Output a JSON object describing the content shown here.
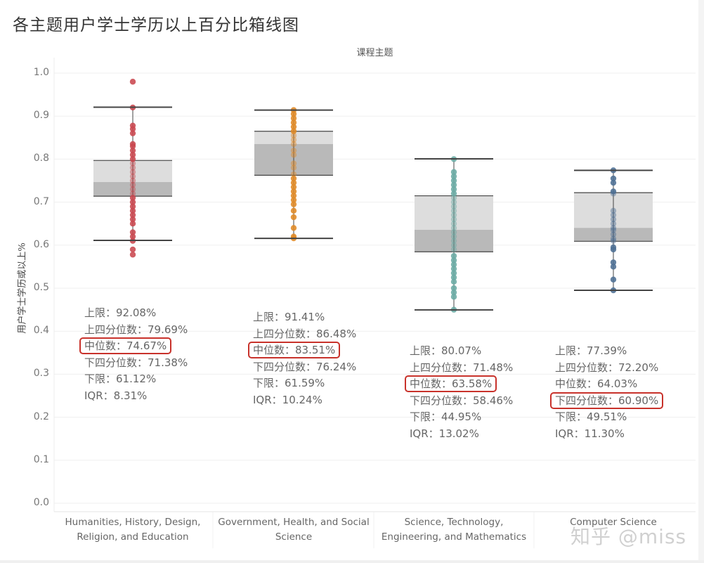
{
  "title": "各主题用户学士学历以上百分比箱线图",
  "column_header": "课程主题",
  "y_axis_title": "用户学士学历或以上%",
  "watermark": "知乎 @miss",
  "colors": {
    "humanities": "#c9474e",
    "government": "#e08a26",
    "stem": "#6aaba4",
    "cs": "#4d6f94",
    "box_upper": "#dddddd",
    "box_lower": "#b9b9b9",
    "whisker": "#444444",
    "highlight": "#c8322b"
  },
  "chart_data": {
    "type": "box",
    "title": "各主题用户学士学历以上百分比箱线图",
    "xlabel": "课程主题",
    "ylabel": "用户学士学历或以上%",
    "ylim": [
      0.0,
      1.0
    ],
    "yticks": [
      "0.0",
      "0.1",
      "0.2",
      "0.3",
      "0.4",
      "0.5",
      "0.6",
      "0.7",
      "0.8",
      "0.9",
      "1.0"
    ],
    "grid": true,
    "categories": [
      "Humanities, History, Design, Religion, and Education",
      "Government, Health, and Social Science",
      "Science, Technology, Engineering, and Mathematics",
      "Computer Science"
    ],
    "series": [
      {
        "name": "Humanities, History, Design, Religion, and Education",
        "label_lines": [
          "Humanities, History, Design,",
          "Religion, and Education"
        ],
        "upper_whisker": 0.9208,
        "q3": 0.7969,
        "median": 0.7467,
        "q1": 0.7138,
        "lower_whisker": 0.6112,
        "iqr": 0.0831,
        "points": [
          0.98,
          0.92,
          0.878,
          0.87,
          0.86,
          0.835,
          0.83,
          0.82,
          0.81,
          0.8,
          0.79,
          0.78,
          0.77,
          0.76,
          0.75,
          0.74,
          0.73,
          0.72,
          0.71,
          0.7,
          0.69,
          0.68,
          0.67,
          0.66,
          0.65,
          0.63,
          0.62,
          0.61,
          0.59,
          0.578
        ],
        "stats": [
          {
            "label": "上限：",
            "value": "92.08%",
            "highlight": false
          },
          {
            "label": "上四分位数：",
            "value": "79.69%",
            "highlight": false
          },
          {
            "label": "中位数：",
            "value": "74.67%",
            "highlight": true
          },
          {
            "label": "下四分位数：",
            "value": "71.38%",
            "highlight": false
          },
          {
            "label": "下限：",
            "value": "61.12%",
            "highlight": false
          },
          {
            "label": "IQR：",
            "value": "8.31%",
            "highlight": false
          }
        ]
      },
      {
        "name": "Government, Health, and Social Science",
        "label_lines": [
          "Government, Health, and Social",
          "Science"
        ],
        "upper_whisker": 0.9141,
        "q3": 0.8648,
        "median": 0.8351,
        "q1": 0.7624,
        "lower_whisker": 0.6159,
        "iqr": 0.1024,
        "points": [
          0.914,
          0.905,
          0.895,
          0.885,
          0.875,
          0.865,
          0.855,
          0.845,
          0.835,
          0.82,
          0.81,
          0.79,
          0.78,
          0.765,
          0.755,
          0.745,
          0.735,
          0.725,
          0.715,
          0.705,
          0.695,
          0.68,
          0.665,
          0.64,
          0.62,
          0.616
        ],
        "stats": [
          {
            "label": "上限：",
            "value": "91.41%",
            "highlight": false
          },
          {
            "label": "上四分位数：",
            "value": "86.48%",
            "highlight": false
          },
          {
            "label": "中位数：",
            "value": "83.51%",
            "highlight": true
          },
          {
            "label": "下四分位数：",
            "value": "76.24%",
            "highlight": false
          },
          {
            "label": "下限：",
            "value": "61.59%",
            "highlight": false
          },
          {
            "label": "IQR：",
            "value": "10.24%",
            "highlight": false
          }
        ]
      },
      {
        "name": "Science, Technology, Engineering, and Mathematics",
        "label_lines": [
          "Science, Technology,",
          "Engineering, and Mathematics"
        ],
        "upper_whisker": 0.8007,
        "q3": 0.7148,
        "median": 0.6358,
        "q1": 0.5846,
        "lower_whisker": 0.4495,
        "iqr": 0.1302,
        "points": [
          0.8,
          0.77,
          0.76,
          0.75,
          0.74,
          0.73,
          0.72,
          0.71,
          0.7,
          0.69,
          0.68,
          0.67,
          0.66,
          0.65,
          0.64,
          0.63,
          0.62,
          0.61,
          0.6,
          0.59,
          0.575,
          0.565,
          0.555,
          0.545,
          0.535,
          0.525,
          0.515,
          0.5,
          0.49,
          0.48,
          0.45
        ],
        "stats": [
          {
            "label": "上限：",
            "value": "80.07%",
            "highlight": false
          },
          {
            "label": "上四分位数：",
            "value": "71.48%",
            "highlight": false
          },
          {
            "label": "中位数：",
            "value": "63.58%",
            "highlight": true
          },
          {
            "label": "下四分位数：",
            "value": "58.46%",
            "highlight": false
          },
          {
            "label": "下限：",
            "value": "44.95%",
            "highlight": false
          },
          {
            "label": "IQR：",
            "value": "13.02%",
            "highlight": false
          }
        ]
      },
      {
        "name": "Computer Science",
        "label_lines": [
          "Computer Science"
        ],
        "upper_whisker": 0.7739,
        "q3": 0.722,
        "median": 0.6403,
        "q1": 0.609,
        "lower_whisker": 0.4951,
        "iqr": 0.113,
        "points": [
          0.774,
          0.755,
          0.745,
          0.725,
          0.72,
          0.68,
          0.67,
          0.66,
          0.65,
          0.64,
          0.635,
          0.625,
          0.615,
          0.61,
          0.595,
          0.59,
          0.56,
          0.55,
          0.52,
          0.495
        ],
        "stats": [
          {
            "label": "上限：",
            "value": "77.39%",
            "highlight": false
          },
          {
            "label": "上四分位数：",
            "value": "72.20%",
            "highlight": false
          },
          {
            "label": "中位数：",
            "value": "64.03%",
            "highlight": false
          },
          {
            "label": "下四分位数：",
            "value": "60.90%",
            "highlight": true
          },
          {
            "label": "下限：",
            "value": "49.51%",
            "highlight": false
          },
          {
            "label": "IQR：",
            "value": "11.30%",
            "highlight": false
          }
        ]
      }
    ]
  }
}
